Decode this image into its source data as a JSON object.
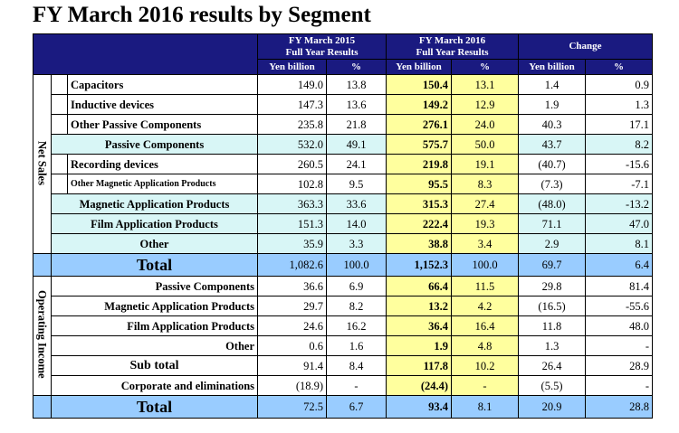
{
  "title": "FY March 2016 results by Segment",
  "header": {
    "fy2015": "FY March 2015\nFull Year Results",
    "fy2015_line1": "FY March 2015",
    "fy2015_line2": "Full Year Results",
    "fy2016_line1": "FY March 2016",
    "fy2016_line2": "Full Year Results",
    "change": "Change",
    "yen": "Yen billion",
    "pct": "%"
  },
  "sections": {
    "net_sales": "Net Sales",
    "operating_income": "Operating Income"
  },
  "net_sales_rows": [
    {
      "label": "Capacitors",
      "v15": "149.0",
      "p15": "13.8",
      "v16": "150.4",
      "p16": "13.1",
      "cy": "1.4",
      "cp": "0.9"
    },
    {
      "label": "Inductive devices",
      "v15": "147.3",
      "p15": "13.6",
      "v16": "149.2",
      "p16": "12.9",
      "cy": "1.9",
      "cp": "1.3"
    },
    {
      "label": "Other Passive Components",
      "v15": "235.8",
      "p15": "21.8",
      "v16": "276.1",
      "p16": "24.0",
      "cy": "40.3",
      "cp": "17.1"
    },
    {
      "label": "Passive Components",
      "v15": "532.0",
      "p15": "49.1",
      "v16": "575.7",
      "p16": "50.0",
      "cy": "43.7",
      "cp": "8.2"
    },
    {
      "label": "Recording devices",
      "v15": "260.5",
      "p15": "24.1",
      "v16": "219.8",
      "p16": "19.1",
      "cy": "(40.7)",
      "cp": "-15.6"
    },
    {
      "label": "Other Magnetic Application Products",
      "v15": "102.8",
      "p15": "9.5",
      "v16": "95.5",
      "p16": "8.3",
      "cy": "(7.3)",
      "cp": "-7.1"
    },
    {
      "label": "Magnetic Application Products",
      "v15": "363.3",
      "p15": "33.6",
      "v16": "315.3",
      "p16": "27.4",
      "cy": "(48.0)",
      "cp": "-13.2"
    },
    {
      "label": "Film Application Products",
      "v15": "151.3",
      "p15": "14.0",
      "v16": "222.4",
      "p16": "19.3",
      "cy": "71.1",
      "cp": "47.0"
    },
    {
      "label": "Other",
      "v15": "35.9",
      "p15": "3.3",
      "v16": "38.8",
      "p16": "3.4",
      "cy": "2.9",
      "cp": "8.1"
    }
  ],
  "net_sales_total": {
    "label": "Total",
    "v15": "1,082.6",
    "p15": "100.0",
    "v16": "1,152.3",
    "p16": "100.0",
    "cy": "69.7",
    "cp": "6.4"
  },
  "op_income_rows": [
    {
      "label": "Passive Components",
      "v15": "36.6",
      "p15": "6.9",
      "v16": "66.4",
      "p16": "11.5",
      "cy": "29.8",
      "cp": "81.4"
    },
    {
      "label": "Magnetic Application Products",
      "v15": "29.7",
      "p15": "8.2",
      "v16": "13.2",
      "p16": "4.2",
      "cy": "(16.5)",
      "cp": "-55.6"
    },
    {
      "label": "Film Application Products",
      "v15": "24.6",
      "p15": "16.2",
      "v16": "36.4",
      "p16": "16.4",
      "cy": "11.8",
      "cp": "48.0"
    },
    {
      "label": "Other",
      "v15": "0.6",
      "p15": "1.6",
      "v16": "1.9",
      "p16": "4.8",
      "cy": "1.3",
      "cp": "-"
    },
    {
      "label": "Sub total",
      "v15": "91.4",
      "p15": "8.4",
      "v16": "117.8",
      "p16": "10.2",
      "cy": "26.4",
      "cp": "28.9"
    },
    {
      "label": "Corporate and eliminations",
      "v15": "(18.9)",
      "p15": "-",
      "v16": "(24.4)",
      "p16": "-",
      "cy": "(5.5)",
      "cp": "-"
    }
  ],
  "op_income_total": {
    "label": "Total",
    "v15": "72.5",
    "p15": "6.7",
    "v16": "93.4",
    "p16": "8.1",
    "cy": "20.9",
    "cp": "28.8"
  }
}
